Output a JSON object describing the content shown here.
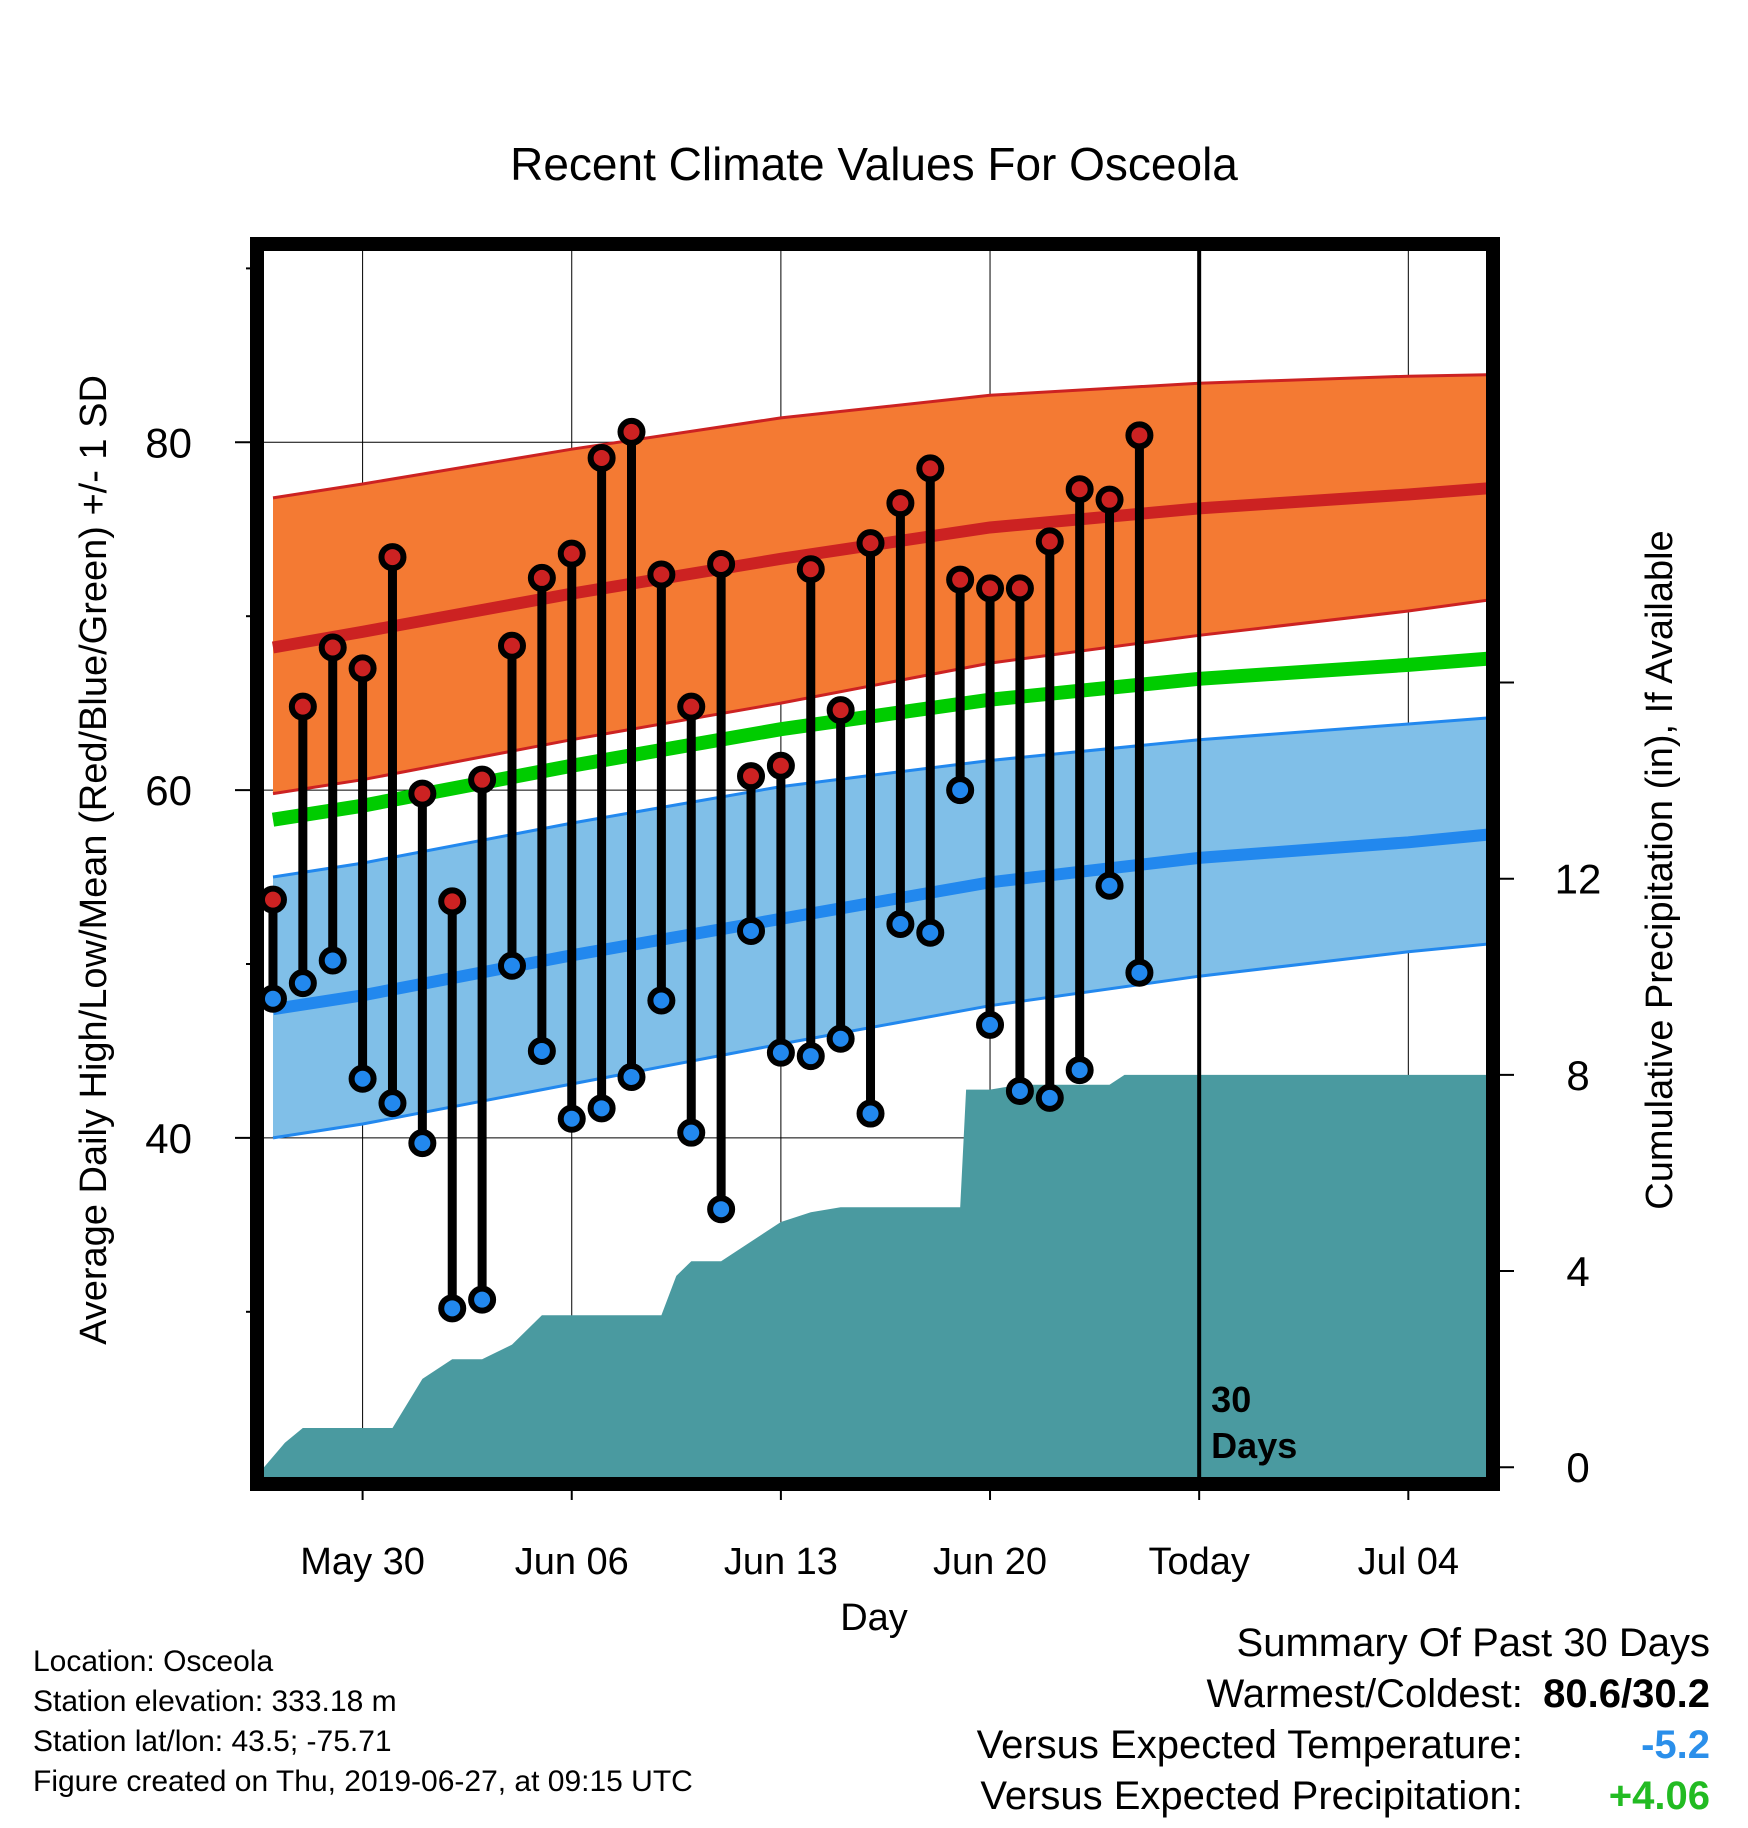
{
  "chart_data": {
    "type": "line",
    "title": "Recent Climate Values For Osceola",
    "xlabel": "Day",
    "ylabel": "Average Daily High/Low/Mean (Red/Blue/Green) +/- 1 SD",
    "y2label": "Cumulative Precipitation (in), If Available",
    "x_tick_labels": [
      "May 30",
      "Jun 06",
      "Jun 13",
      "Jun 20",
      "Today",
      "Jul 04"
    ],
    "x_tick_days": [
      30,
      37,
      44,
      51,
      58,
      65
    ],
    "x_range_days": [
      26.7,
      67.6
    ],
    "ylim": [
      20.5,
      91
    ],
    "y_ticks": [
      40,
      60,
      80
    ],
    "y2lim": [
      -0.2,
      24.8
    ],
    "y2_ticks": [
      0,
      4,
      8,
      12
    ],
    "today_day": 58,
    "today_annotation": "30\nDays",
    "colors": {
      "high": "#cc2222",
      "high_band": "#f47a33",
      "low": "#2288ee",
      "low_band": "#80bfe8",
      "mean": "#00cc00",
      "precip": "#4a9aa0",
      "high_dot": "#cc2222",
      "low_dot": "#2288ee"
    },
    "normals": {
      "days": [
        27,
        30,
        37,
        44,
        51,
        58,
        65,
        68
      ],
      "high_mean": [
        68.2,
        69.1,
        71.3,
        73.3,
        75.1,
        76.2,
        77.0,
        77.4
      ],
      "high_upper": [
        76.8,
        77.6,
        79.6,
        81.4,
        82.7,
        83.4,
        83.8,
        83.9
      ],
      "high_lower": [
        59.8,
        60.6,
        62.9,
        65.0,
        67.3,
        68.9,
        70.3,
        71.0
      ],
      "mean": [
        58.3,
        59.1,
        61.4,
        63.5,
        65.2,
        66.4,
        67.2,
        67.6
      ],
      "low_mean": [
        47.4,
        48.2,
        50.5,
        52.6,
        54.7,
        56.1,
        57.0,
        57.5
      ],
      "low_upper": [
        55.0,
        55.8,
        58.1,
        60.2,
        61.7,
        62.9,
        63.8,
        64.2
      ],
      "low_lower": [
        40.0,
        40.8,
        43.1,
        45.4,
        47.6,
        49.3,
        50.7,
        51.2
      ]
    },
    "days": [
      27,
      28,
      29,
      30,
      31,
      32,
      33,
      34,
      35,
      36,
      37,
      38,
      39,
      40,
      41,
      42,
      43,
      44,
      45,
      46,
      47,
      48,
      49,
      50,
      51,
      52,
      53,
      54,
      55,
      56
    ],
    "highs": [
      53.7,
      64.8,
      68.2,
      67.0,
      73.4,
      59.8,
      53.6,
      60.6,
      68.3,
      72.2,
      73.6,
      79.1,
      80.6,
      72.4,
      64.8,
      73.0,
      60.8,
      61.4,
      72.7,
      64.6,
      74.2,
      76.5,
      78.5,
      72.1,
      71.6,
      71.6,
      74.3,
      77.3,
      76.7,
      80.4
    ],
    "lows": [
      48.0,
      48.9,
      50.2,
      43.4,
      42.0,
      39.7,
      30.2,
      30.7,
      49.9,
      45.0,
      41.1,
      41.7,
      43.5,
      47.9,
      40.3,
      35.9,
      51.9,
      44.9,
      44.7,
      45.7,
      41.4,
      52.3,
      51.8,
      60.0,
      46.5,
      42.7,
      42.3,
      43.9,
      54.5,
      49.5
    ],
    "precip": {
      "days": [
        26.7,
        27.4,
        28.0,
        29.0,
        30.0,
        31.0,
        32.0,
        33.0,
        34.0,
        35.0,
        36.0,
        37.0,
        38.0,
        39.0,
        40.0,
        40.5,
        41.0,
        42.0,
        43.0,
        44.0,
        45.0,
        46.0,
        47.0,
        48.0,
        49.0,
        50.0,
        50.2,
        51.0,
        52.0,
        53.0,
        54.0,
        55.0,
        55.5,
        56.0,
        57.0,
        58.0,
        59.0,
        60.0,
        65.0,
        67.6
      ],
      "values": [
        0.0,
        0.5,
        0.8,
        0.8,
        0.8,
        0.8,
        1.8,
        2.2,
        2.2,
        2.5,
        3.1,
        3.1,
        3.1,
        3.1,
        3.1,
        3.9,
        4.2,
        4.2,
        4.6,
        5.0,
        5.2,
        5.3,
        5.3,
        5.3,
        5.3,
        5.3,
        7.7,
        7.7,
        7.8,
        7.8,
        7.8,
        7.8,
        8.0,
        8.0,
        8.0,
        8.0,
        8.0,
        8.0,
        8.0,
        8.0
      ]
    }
  },
  "info": {
    "location": "Location: Osceola",
    "elevation": "Station elevation: 333.18 m",
    "latlon": "Station lat/lon: 43.5; -75.71",
    "created": "Figure created on Thu, 2019-06-27, at 09:15 UTC"
  },
  "summary": {
    "title": "Summary Of Past 30 Days",
    "warmest_label": "Warmest/Coldest:",
    "warmest_value": "80.6/30.2",
    "temp_label": "Versus Expected Temperature:",
    "temp_value": "-5.2",
    "temp_color": "#2b8fea",
    "precip_label": "Versus Expected Precipitation:",
    "precip_value": "+4.06",
    "precip_color": "#22bb22"
  }
}
